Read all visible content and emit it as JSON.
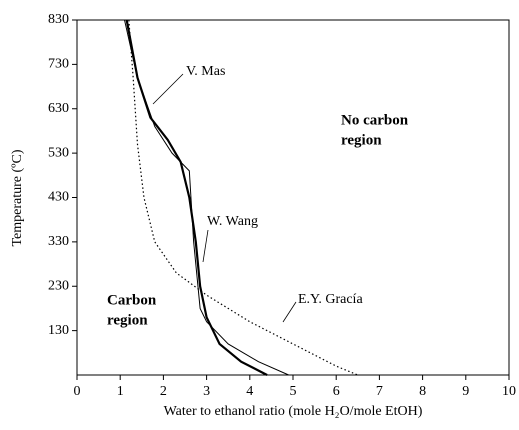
{
  "chart_data": {
    "type": "line",
    "x_label": "Water to ethanol ratio (mole H₂O/mole EtOH)",
    "y_label": "Temperature (ºC)",
    "xlim": [
      0,
      10
    ],
    "ylim": [
      30,
      830
    ],
    "xticks": [
      0,
      1,
      2,
      3,
      4,
      5,
      6,
      7,
      8,
      9,
      10
    ],
    "yticks": [
      130,
      230,
      330,
      430,
      530,
      630,
      730,
      830
    ],
    "series": [
      {
        "name": "V. Mas",
        "color": "#000000",
        "style": "solid",
        "width": 1,
        "x": [
          1.1,
          1.4,
          1.8,
          2.2,
          2.6,
          2.7,
          2.85,
          3.0,
          3.5,
          4.2,
          4.9
        ],
        "values": [
          830,
          700,
          590,
          530,
          490,
          330,
          180,
          150,
          100,
          60,
          30
        ]
      },
      {
        "name": "W. Wang",
        "color": "#000000",
        "style": "solid",
        "width": 2.2,
        "x": [
          1.15,
          1.4,
          1.7,
          2.1,
          2.4,
          2.6,
          2.75,
          2.85,
          3.0,
          3.3,
          3.8,
          4.4
        ],
        "values": [
          830,
          700,
          610,
          560,
          510,
          430,
          330,
          230,
          160,
          100,
          60,
          30
        ]
      },
      {
        "name": "E.Y. Gracía",
        "color": "#000000",
        "style": "dotted",
        "width": 1.2,
        "x": [
          1.2,
          1.3,
          1.4,
          1.55,
          1.8,
          2.3,
          3.0,
          4.0,
          5.0,
          6.0,
          6.5
        ],
        "values": [
          830,
          700,
          550,
          430,
          330,
          260,
          210,
          150,
          100,
          50,
          30
        ]
      }
    ],
    "annotations": [
      [
        "No carbon",
        "region"
      ],
      [
        "Carbon",
        "region"
      ]
    ]
  }
}
